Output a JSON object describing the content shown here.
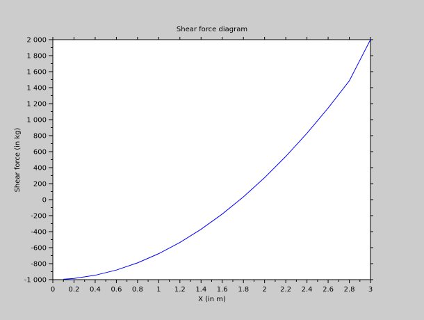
{
  "chart_data": {
    "type": "line",
    "title": "Shear force diagram",
    "xlabel": "X (in m)",
    "ylabel": "Shear force (in kg)",
    "xlim": [
      0,
      3
    ],
    "ylim": [
      -1000,
      2000
    ],
    "xticks": [
      0,
      0.2,
      0.4,
      0.6,
      0.8,
      1,
      1.2,
      1.4,
      1.6,
      1.8,
      2,
      2.2,
      2.4,
      2.6,
      2.8,
      3
    ],
    "xtick_labels": [
      "0",
      "0.2",
      "0.4",
      "0.6",
      "0.8",
      "1",
      "1.2",
      "1.4",
      "1.6",
      "1.8",
      "2",
      "2.2",
      "2.4",
      "2.6",
      "2.8",
      "3"
    ],
    "yticks": [
      -1000,
      -800,
      -600,
      -400,
      -200,
      0,
      200,
      400,
      600,
      800,
      1000,
      1200,
      1400,
      1600,
      1800,
      2000
    ],
    "ytick_labels": [
      "-1 000",
      "-800",
      "-600",
      "-400",
      "-200",
      "0",
      "200",
      "400",
      "600",
      "800",
      "1 000",
      "1 200",
      "1 400",
      "1 600",
      "1 800",
      "2 000"
    ],
    "grid": false,
    "series": [
      {
        "color": "#0000ff",
        "x": [
          0.1,
          0.2,
          0.4,
          0.6,
          0.8,
          1.0,
          1.2,
          1.4,
          1.6,
          1.8,
          2.0,
          2.2,
          2.4,
          2.6,
          2.8,
          3.0
        ],
        "y": [
          -995,
          -985,
          -945,
          -880,
          -790,
          -675,
          -535,
          -370,
          -180,
          35,
          275,
          540,
          830,
          1145,
          1485,
          2000
        ]
      }
    ]
  },
  "colors": {
    "background": "#cccccc",
    "plot_area": "#ffffff",
    "line": "#0000ff"
  }
}
